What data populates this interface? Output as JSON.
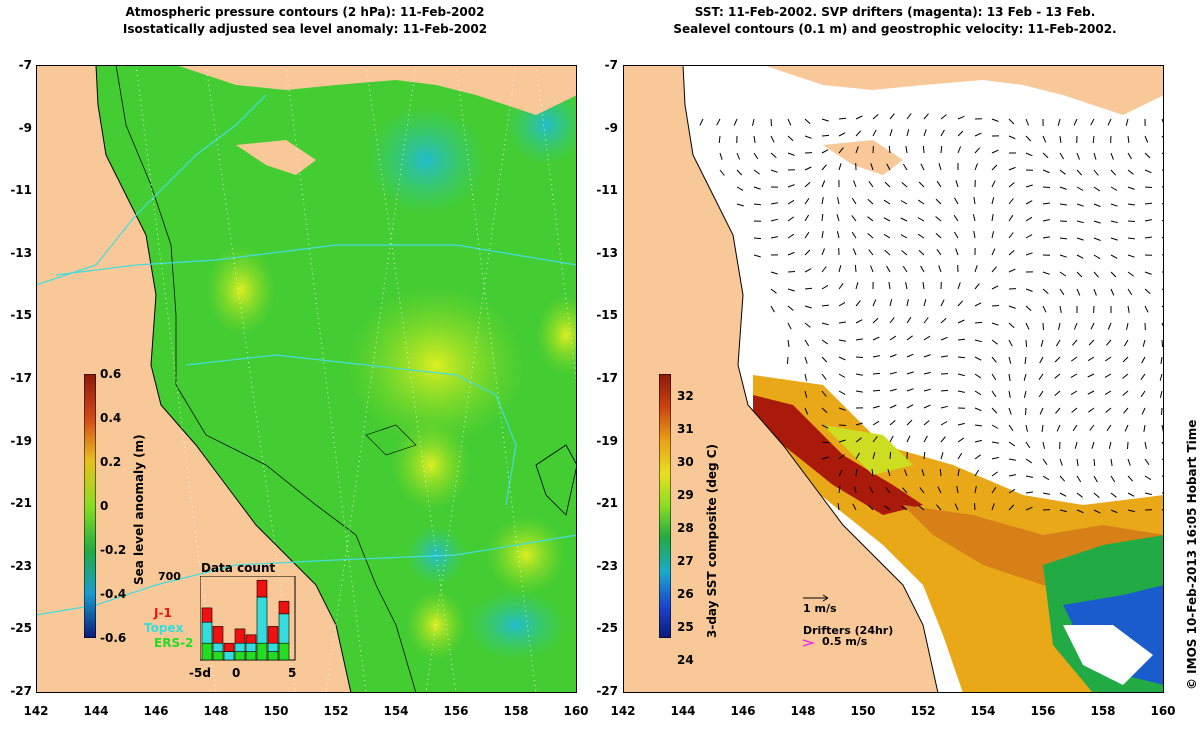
{
  "left_panel": {
    "title_line1": "Atmospheric pressure contours (2 hPa): 11-Feb-2002",
    "title_line2": "Isostatically adjusted sea level anomaly: 11-Feb-2002",
    "colorbar": {
      "label": "Sea level anomaly (m)",
      "ticks": [
        "0.6",
        "0.4",
        "0.2",
        "0",
        "-0.2",
        "-0.4",
        "-0.6"
      ]
    },
    "histogram": {
      "title": "Data count",
      "ymax_label": "700",
      "x_labels": [
        "-5d",
        "0",
        "5"
      ],
      "legend": [
        {
          "name": "J-1",
          "color": "#ee1111"
        },
        {
          "name": "Topex",
          "color": "#33dddd"
        },
        {
          "name": "ERS-2",
          "color": "#22dd22"
        }
      ],
      "bars": [
        {
          "j1": 0.17,
          "topex": 0.25,
          "ers2": 0.2
        },
        {
          "j1": 0.2,
          "topex": 0.1,
          "ers2": 0.1
        },
        {
          "j1": 0.1,
          "topex": 0.1,
          "ers2": 0.0
        },
        {
          "j1": 0.17,
          "topex": 0.1,
          "ers2": 0.1
        },
        {
          "j1": 0.1,
          "topex": 0.1,
          "ers2": 0.1
        },
        {
          "j1": 0.2,
          "topex": 0.55,
          "ers2": 0.2
        },
        {
          "j1": 0.2,
          "topex": 0.1,
          "ers2": 0.1
        },
        {
          "j1": 0.15,
          "topex": 0.35,
          "ers2": 0.2
        }
      ]
    }
  },
  "right_panel": {
    "title_line1": "SST: 11-Feb-2002. SVP drifters (magenta): 13 Feb - 13 Feb.",
    "title_line2": "Sealevel contours (0.1 m) and geostrophic velocity: 11-Feb-2002.",
    "colorbar": {
      "label": "3-day SST composite (deg C)",
      "ticks": [
        "32",
        "31",
        "30",
        "29",
        "28",
        "27",
        "26",
        "25",
        "24"
      ]
    },
    "velocity_scale_label": "1 m/s",
    "drifters_label": "Drifters (24hr)",
    "drifters_speed_label": "0.5 m/s"
  },
  "axes": {
    "lat_ticks": [
      "-7",
      "-9",
      "-11",
      "-13",
      "-15",
      "-17",
      "-19",
      "-21",
      "-23",
      "-25",
      "-27"
    ],
    "lon_ticks": [
      "142",
      "144",
      "146",
      "148",
      "150",
      "152",
      "154",
      "156",
      "158",
      "160"
    ]
  },
  "credit": "© IMOS 10-Feb-2013 16:05 Hobart Time",
  "colors": {
    "land": "#f8c898",
    "sea_green": "#44cc33",
    "sst_white": "#ffffff"
  }
}
